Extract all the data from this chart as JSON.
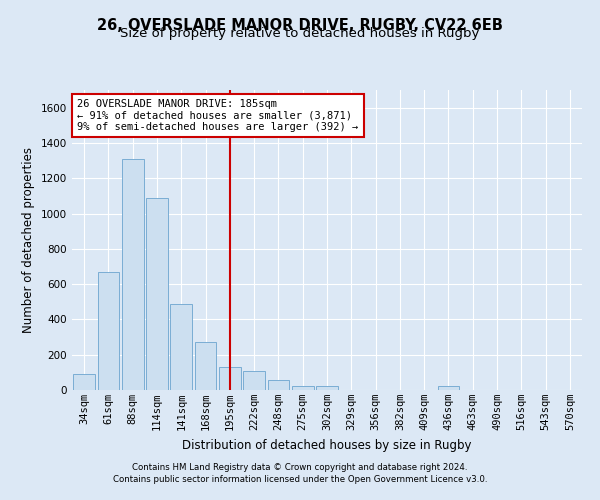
{
  "title1": "26, OVERSLADE MANOR DRIVE, RUGBY, CV22 6EB",
  "title2": "Size of property relative to detached houses in Rugby",
  "xlabel": "Distribution of detached houses by size in Rugby",
  "ylabel": "Number of detached properties",
  "categories": [
    "34sqm",
    "61sqm",
    "88sqm",
    "114sqm",
    "141sqm",
    "168sqm",
    "195sqm",
    "222sqm",
    "248sqm",
    "275sqm",
    "302sqm",
    "329sqm",
    "356sqm",
    "382sqm",
    "409sqm",
    "436sqm",
    "463sqm",
    "490sqm",
    "516sqm",
    "543sqm",
    "570sqm"
  ],
  "values": [
    90,
    670,
    1310,
    1090,
    490,
    270,
    130,
    110,
    55,
    20,
    25,
    0,
    0,
    0,
    0,
    20,
    0,
    0,
    0,
    0,
    0
  ],
  "bar_color": "#ccdff0",
  "bar_edge_color": "#7aadd4",
  "vline_index": 6,
  "vline_color": "#cc0000",
  "annotation_line1": "26 OVERSLADE MANOR DRIVE: 185sqm",
  "annotation_line2": "← 91% of detached houses are smaller (3,871)",
  "annotation_line3": "9% of semi-detached houses are larger (392) →",
  "annotation_box_facecolor": "#ffffff",
  "annotation_box_edgecolor": "#cc0000",
  "ylim": [
    0,
    1700
  ],
  "yticks": [
    0,
    200,
    400,
    600,
    800,
    1000,
    1200,
    1400,
    1600
  ],
  "footer1": "Contains HM Land Registry data © Crown copyright and database right 2024.",
  "footer2": "Contains public sector information licensed under the Open Government Licence v3.0.",
  "bg_color": "#dce8f5",
  "grid_color": "#ffffff",
  "title1_fontsize": 10.5,
  "title2_fontsize": 9.5,
  "axis_label_fontsize": 8.5,
  "tick_fontsize": 7.5,
  "footer_fontsize": 6.2,
  "annot_fontsize": 7.5
}
